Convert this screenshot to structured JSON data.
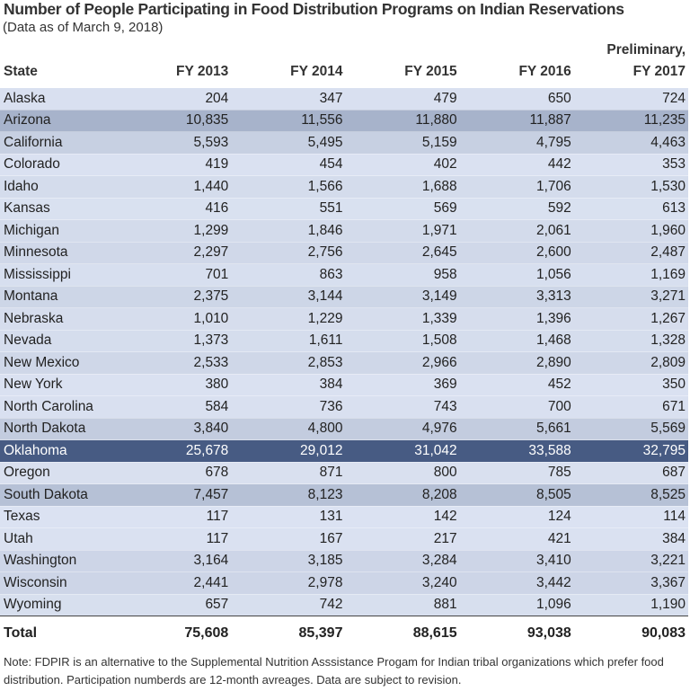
{
  "chart_data": {
    "type": "table",
    "title": "Number of People Participating in Food Distribution Programs on Indian Reservations",
    "subtitle": "(Data as of March 9, 2018)",
    "columns": [
      "State",
      "FY 2013",
      "FY 2014",
      "FY 2015",
      "FY 2016",
      "Preliminary, FY 2017"
    ],
    "column_header_lines": [
      [
        "State"
      ],
      [
        "FY 2013"
      ],
      [
        "FY 2014"
      ],
      [
        "FY 2015"
      ],
      [
        "FY 2016"
      ],
      [
        "Preliminary,",
        "FY 2017"
      ]
    ],
    "rows": [
      [
        "Alaska",
        "204",
        "347",
        "479",
        "650",
        "724"
      ],
      [
        "Arizona",
        "10,835",
        "11,556",
        "11,880",
        "11,887",
        "11,235"
      ],
      [
        "California",
        "5,593",
        "5,495",
        "5,159",
        "4,795",
        "4,463"
      ],
      [
        "Colorado",
        "419",
        "454",
        "402",
        "442",
        "353"
      ],
      [
        "Idaho",
        "1,440",
        "1,566",
        "1,688",
        "1,706",
        "1,530"
      ],
      [
        "Kansas",
        "416",
        "551",
        "569",
        "592",
        "613"
      ],
      [
        "Michigan",
        "1,299",
        "1,846",
        "1,971",
        "2,061",
        "1,960"
      ],
      [
        "Minnesota",
        "2,297",
        "2,756",
        "2,645",
        "2,600",
        "2,487"
      ],
      [
        "Mississippi",
        "701",
        "863",
        "958",
        "1,056",
        "1,169"
      ],
      [
        "Montana",
        "2,375",
        "3,144",
        "3,149",
        "3,313",
        "3,271"
      ],
      [
        "Nebraska",
        "1,010",
        "1,229",
        "1,339",
        "1,396",
        "1,267"
      ],
      [
        "Nevada",
        "1,373",
        "1,611",
        "1,508",
        "1,468",
        "1,328"
      ],
      [
        "New Mexico",
        "2,533",
        "2,853",
        "2,966",
        "2,890",
        "2,809"
      ],
      [
        "New York",
        "380",
        "384",
        "369",
        "452",
        "350"
      ],
      [
        "North Carolina",
        "584",
        "736",
        "743",
        "700",
        "671"
      ],
      [
        "North Dakota",
        "3,840",
        "4,800",
        "4,976",
        "5,661",
        "5,569"
      ],
      [
        "Oklahoma",
        "25,678",
        "29,012",
        "31,042",
        "33,588",
        "32,795"
      ],
      [
        "Oregon",
        "678",
        "871",
        "800",
        "785",
        "687"
      ],
      [
        "South Dakota",
        "7,457",
        "8,123",
        "8,208",
        "8,505",
        "8,525"
      ],
      [
        "Texas",
        "117",
        "131",
        "142",
        "124",
        "114"
      ],
      [
        "Utah",
        "117",
        "167",
        "217",
        "421",
        "384"
      ],
      [
        "Washington",
        "3,164",
        "3,185",
        "3,284",
        "3,410",
        "3,221"
      ],
      [
        "Wisconsin",
        "2,441",
        "2,978",
        "3,240",
        "3,442",
        "3,367"
      ],
      [
        "Wyoming",
        "657",
        "742",
        "881",
        "1,096",
        "1,190"
      ]
    ],
    "total": [
      "Total",
      "75,608",
      "85,397",
      "88,615",
      "93,038",
      "90,083"
    ],
    "shading": {
      "low_color": "#dce3f2",
      "high_color": "#475b83",
      "encodes": "row participation level"
    }
  },
  "note": "Note: FDPIR is an alternative to the Supplemental Nutrition Asssistance Progam for Indian tribal organizations which prefer food distribution. Participation numberds are 12-month avreages. Data are subject to revision."
}
